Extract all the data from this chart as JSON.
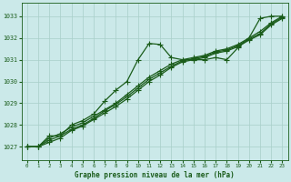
{
  "title": "Graphe pression niveau de la mer (hPa)",
  "bg_color": "#cbe9e9",
  "grid_color": "#a8cfc8",
  "line_color": "#1a5c1a",
  "xlim": [
    -0.5,
    23.5
  ],
  "ylim": [
    1026.4,
    1033.6
  ],
  "yticks": [
    1027,
    1028,
    1029,
    1030,
    1031,
    1032,
    1033
  ],
  "xticks": [
    0,
    1,
    2,
    3,
    4,
    5,
    6,
    7,
    8,
    9,
    10,
    11,
    12,
    13,
    14,
    15,
    16,
    17,
    18,
    19,
    20,
    21,
    22,
    23
  ],
  "series": [
    {
      "x": [
        0,
        1,
        2,
        3,
        4,
        5,
        6,
        7,
        8,
        9,
        10,
        11,
        12,
        13,
        14,
        15,
        16,
        17,
        18,
        19,
        20,
        21,
        22,
        23
      ],
      "y": [
        1027.0,
        1027.0,
        1027.5,
        1027.5,
        1028.0,
        1028.2,
        1028.5,
        1029.1,
        1029.6,
        1030.0,
        1031.0,
        1031.75,
        1031.7,
        1031.1,
        1031.0,
        1031.0,
        1031.0,
        1031.1,
        1031.0,
        1031.55,
        1032.0,
        1032.9,
        1033.0,
        1033.0
      ],
      "marker": "+",
      "markersize": 4,
      "linewidth": 0.9,
      "linestyle": "-"
    },
    {
      "x": [
        0,
        1,
        2,
        3,
        4,
        5,
        6,
        7,
        8,
        9,
        10,
        11,
        12,
        13,
        14,
        15,
        16,
        17,
        18,
        19,
        20,
        21,
        22,
        23
      ],
      "y": [
        1027.0,
        1027.0,
        1027.4,
        1027.6,
        1027.9,
        1028.1,
        1028.4,
        1028.7,
        1029.0,
        1029.4,
        1029.8,
        1030.2,
        1030.5,
        1030.8,
        1031.0,
        1031.1,
        1031.2,
        1031.4,
        1031.5,
        1031.7,
        1032.0,
        1032.3,
        1032.7,
        1033.0
      ],
      "marker": "+",
      "markersize": 4,
      "linewidth": 0.9,
      "linestyle": "-"
    },
    {
      "x": [
        0,
        1,
        2,
        3,
        4,
        5,
        6,
        7,
        8,
        9,
        10,
        11,
        12,
        13,
        14,
        15,
        16,
        17,
        18,
        19,
        20,
        21,
        22,
        23
      ],
      "y": [
        1027.0,
        1027.0,
        1027.3,
        1027.5,
        1027.8,
        1028.0,
        1028.3,
        1028.65,
        1028.95,
        1029.3,
        1029.7,
        1030.1,
        1030.4,
        1030.7,
        1030.95,
        1031.05,
        1031.15,
        1031.35,
        1031.45,
        1031.65,
        1031.95,
        1032.2,
        1032.65,
        1032.95
      ],
      "marker": "+",
      "markersize": 4,
      "linewidth": 0.9,
      "linestyle": "-"
    },
    {
      "x": [
        0,
        1,
        2,
        3,
        4,
        5,
        6,
        7,
        8,
        9,
        10,
        11,
        12,
        13,
        14,
        15,
        16,
        17,
        18,
        19,
        20,
        21,
        22,
        23
      ],
      "y": [
        1027.0,
        1027.0,
        1027.2,
        1027.4,
        1027.75,
        1027.95,
        1028.25,
        1028.55,
        1028.85,
        1029.2,
        1029.6,
        1030.0,
        1030.3,
        1030.65,
        1030.9,
        1031.0,
        1031.1,
        1031.3,
        1031.4,
        1031.6,
        1031.9,
        1032.15,
        1032.6,
        1032.9
      ],
      "marker": "+",
      "markersize": 4,
      "linewidth": 0.9,
      "linestyle": "-"
    }
  ]
}
